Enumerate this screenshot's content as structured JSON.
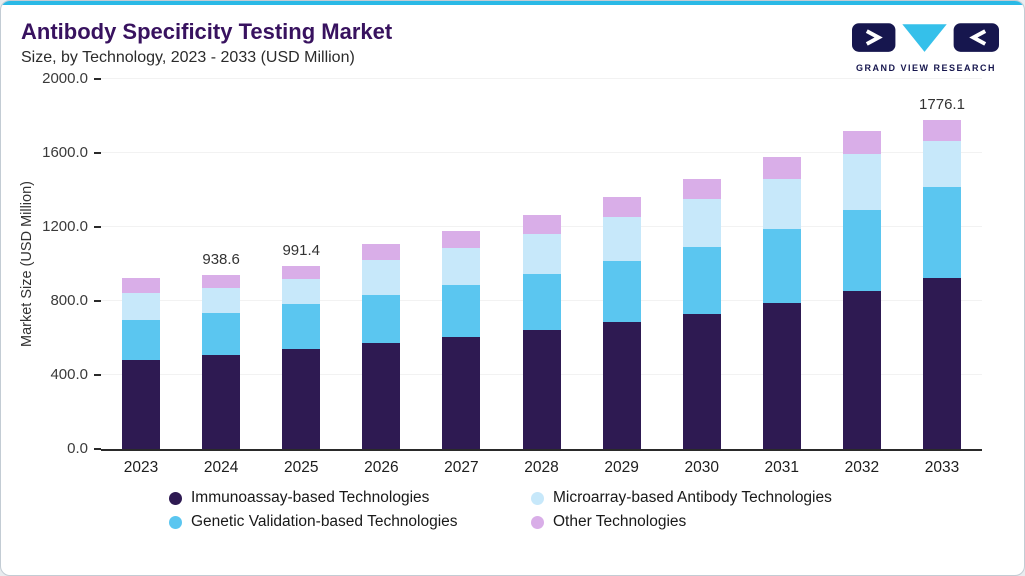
{
  "header": {
    "title": "Antibody Specificity Testing Market",
    "subtitle": "Size, by Technology, 2023 - 2033 (USD Million)",
    "logo_text": "GRAND VIEW RESEARCH"
  },
  "colors": {
    "accent_top": "#2ab9e6",
    "title_text": "#38125f",
    "logo_navy": "#16164e",
    "logo_cyan": "#35c0ea"
  },
  "chart_data": {
    "type": "bar",
    "stacked": true,
    "title": "Antibody Specificity Testing Market Size, by Technology, 2023 - 2033 (USD Million)",
    "xlabel": "",
    "ylabel": "Market Size (USD Million)",
    "ylim": [
      0,
      2000
    ],
    "yticks": [
      0,
      400,
      800,
      1200,
      1600,
      2000
    ],
    "ytick_labels": [
      "0.0",
      "400.0",
      "800.0",
      "1200.0",
      "1600.0",
      "2000.0"
    ],
    "grid": "none",
    "legend_position": "bottom",
    "categories": [
      "2023",
      "2024",
      "2025",
      "2026",
      "2027",
      "2028",
      "2029",
      "2030",
      "2031",
      "2032",
      "2033"
    ],
    "series": [
      {
        "name": "Immunoassay-based Technologies",
        "color": "#2e1a52",
        "values": [
          480,
          508,
          540,
          572,
          606,
          644,
          686,
          732,
          790,
          856,
          926
        ]
      },
      {
        "name": "Genetic Validation-based Technologies",
        "color": "#5bc6f0",
        "values": [
          218,
          228,
          242,
          262,
          280,
          302,
          330,
          362,
          398,
          438,
          490
        ]
      },
      {
        "name": "Microarray-based Antibody Technologies",
        "color": "#c7e8fa",
        "values": [
          148,
          134,
          137,
          188,
          203,
          219,
          239,
          256,
          272,
          300,
          250
        ]
      },
      {
        "name": "Other Technologies",
        "color": "#d9aee8",
        "values": [
          79,
          68.6,
          72.4,
          88,
          91,
          100,
          105,
          110,
          120,
          126,
          110.1
        ]
      }
    ],
    "totals": [
      925,
      938.6,
      991.4,
      1110,
      1180,
      1265,
      1360,
      1460,
      1580,
      1720,
      1776.1
    ],
    "bar_labels": {
      "2024": "938.6",
      "2025": "991.4",
      "2033": "1776.1"
    },
    "legend_order": [
      "Immunoassay-based Technologies",
      "Microarray-based Antibody Technologies",
      "Genetic Validation-based Technologies",
      "Other Technologies"
    ]
  }
}
